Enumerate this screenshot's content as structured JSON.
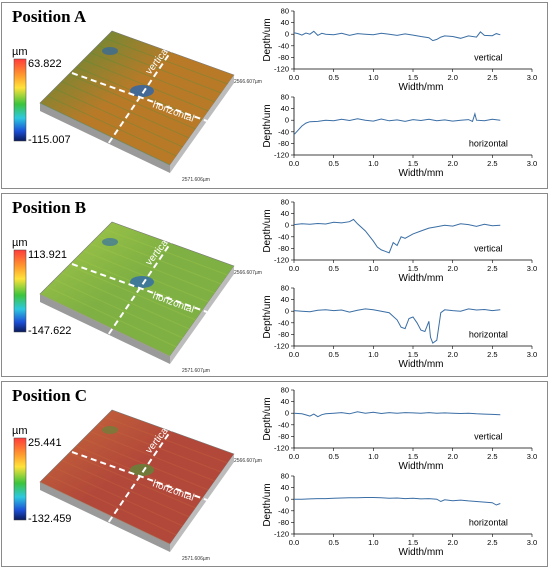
{
  "panels": [
    {
      "title": "Position A",
      "unit": "µm",
      "scale_max": "63.822",
      "scale_min": "-115.007",
      "axis_label_right": "2566.607µm",
      "axis_label_front": "2571.606µm",
      "line_labels": [
        "vertical",
        "horizontal"
      ],
      "surface_colors": {
        "base": "#b97a28",
        "accent": "#4f8f3a",
        "dark": "#1f63b8"
      }
    },
    {
      "title": "Position B",
      "unit": "µm",
      "scale_max": "113.921",
      "scale_min": "-147.622",
      "axis_label_right": "2566.607µm",
      "axis_label_front": "2571.607µm",
      "line_labels": [
        "vertical",
        "horizontal"
      ],
      "surface_colors": {
        "base": "#7fb043",
        "accent": "#a4c94a",
        "dark": "#2a67b3"
      }
    },
    {
      "title": "Position C",
      "unit": "µm",
      "scale_max": "25.441",
      "scale_min": "-132.459",
      "axis_label_right": "2566.607µm",
      "axis_label_front": "2571.606µm",
      "line_labels": [
        "vertical",
        "horizontal"
      ],
      "surface_colors": {
        "base": "#b2483a",
        "accent": "#c86a3a",
        "dark": "#5a8a3a"
      }
    }
  ],
  "chart_data": [
    {
      "panel": "Position A",
      "type": "line",
      "xlabel": "Width/mm",
      "ylabel": "Depth/um",
      "legend": "vertical",
      "xlim": [
        0.0,
        3.0
      ],
      "ylim": [
        -120,
        80
      ],
      "xticks": [
        "0.0",
        "0.5",
        "1.0",
        "1.5",
        "2.0",
        "2.5",
        "3.0"
      ],
      "yticks": [
        "80",
        "40",
        "0",
        "-40",
        "-80",
        "-120"
      ],
      "x": [
        0.0,
        0.05,
        0.1,
        0.15,
        0.2,
        0.25,
        0.3,
        0.35,
        0.4,
        0.5,
        0.6,
        0.7,
        0.8,
        0.9,
        1.0,
        1.1,
        1.2,
        1.3,
        1.4,
        1.5,
        1.6,
        1.7,
        1.75,
        1.8,
        1.85,
        1.9,
        2.0,
        2.1,
        2.2,
        2.3,
        2.35,
        2.4,
        2.5,
        2.55,
        2.6
      ],
      "y": [
        5,
        2,
        -3,
        4,
        0,
        10,
        -4,
        3,
        0,
        -2,
        3,
        -4,
        2,
        0,
        -2,
        3,
        0,
        -4,
        1,
        -3,
        -8,
        -12,
        -22,
        -18,
        -10,
        -6,
        -8,
        -14,
        -6,
        -10,
        8,
        -4,
        -5,
        2,
        -2
      ]
    },
    {
      "panel": "Position A",
      "type": "line",
      "xlabel": "Width/mm",
      "ylabel": "Depth/um",
      "legend": "horizontal",
      "xlim": [
        0.0,
        3.0
      ],
      "ylim": [
        -120,
        80
      ],
      "xticks": [
        "0.0",
        "0.5",
        "1.0",
        "1.5",
        "2.0",
        "2.5",
        "3.0"
      ],
      "yticks": [
        "80",
        "40",
        "0",
        "-40",
        "-80",
        "-120"
      ],
      "x": [
        0.0,
        0.05,
        0.1,
        0.15,
        0.2,
        0.3,
        0.4,
        0.5,
        0.6,
        0.7,
        0.8,
        0.9,
        1.0,
        1.1,
        1.2,
        1.3,
        1.4,
        1.5,
        1.6,
        1.7,
        1.8,
        1.9,
        2.0,
        2.1,
        2.2,
        2.25,
        2.28,
        2.3,
        2.4,
        2.5,
        2.6
      ],
      "y": [
        -50,
        -35,
        -20,
        -10,
        -5,
        -4,
        0,
        -2,
        3,
        -1,
        5,
        0,
        -3,
        4,
        -2,
        1,
        -4,
        2,
        -1,
        3,
        -2,
        1,
        -3,
        0,
        2,
        -4,
        22,
        0,
        -2,
        3,
        0
      ]
    },
    {
      "panel": "Position B",
      "type": "line",
      "xlabel": "Width/mm",
      "ylabel": "Depth/um",
      "legend": "vertical",
      "xlim": [
        0.0,
        3.0
      ],
      "ylim": [
        -120,
        80
      ],
      "xticks": [
        "0.0",
        "0.5",
        "1.0",
        "1.5",
        "2.0",
        "2.5",
        "3.0"
      ],
      "yticks": [
        "80",
        "40",
        "0",
        "-40",
        "-80",
        "-120"
      ],
      "x": [
        0.0,
        0.1,
        0.2,
        0.3,
        0.4,
        0.5,
        0.6,
        0.7,
        0.75,
        0.8,
        0.9,
        1.0,
        1.05,
        1.1,
        1.15,
        1.2,
        1.25,
        1.3,
        1.35,
        1.4,
        1.5,
        1.6,
        1.7,
        1.8,
        1.9,
        2.0,
        2.1,
        2.2,
        2.3,
        2.4,
        2.5,
        2.6
      ],
      "y": [
        2,
        5,
        3,
        6,
        4,
        10,
        8,
        12,
        20,
        5,
        -20,
        -55,
        -75,
        -85,
        -90,
        -95,
        -60,
        -70,
        -40,
        -45,
        -30,
        -20,
        -10,
        -5,
        0,
        -3,
        5,
        2,
        -4,
        3,
        -2,
        0
      ]
    },
    {
      "panel": "Position B",
      "type": "line",
      "xlabel": "Width/mm",
      "ylabel": "Depth/um",
      "legend": "horizontal",
      "xlim": [
        0.0,
        3.0
      ],
      "ylim": [
        -120,
        80
      ],
      "xticks": [
        "0.0",
        "0.5",
        "1.0",
        "1.5",
        "2.0",
        "2.5",
        "3.0"
      ],
      "yticks": [
        "80",
        "40",
        "0",
        "-40",
        "-80",
        "-120"
      ],
      "x": [
        0.0,
        0.1,
        0.2,
        0.3,
        0.4,
        0.5,
        0.6,
        0.7,
        0.8,
        0.9,
        1.0,
        1.1,
        1.2,
        1.3,
        1.35,
        1.4,
        1.45,
        1.5,
        1.55,
        1.6,
        1.65,
        1.7,
        1.72,
        1.75,
        1.8,
        1.85,
        1.9,
        2.0,
        2.1,
        2.2,
        2.3,
        2.4,
        2.5,
        2.6
      ],
      "y": [
        2,
        0,
        -2,
        3,
        5,
        2,
        4,
        -3,
        3,
        8,
        5,
        0,
        -5,
        -30,
        -55,
        -60,
        -25,
        -20,
        -40,
        -65,
        -70,
        -35,
        -90,
        -110,
        -100,
        -5,
        5,
        2,
        0,
        8,
        4,
        6,
        2,
        5
      ]
    },
    {
      "panel": "Position C",
      "type": "line",
      "xlabel": "Width/mm",
      "ylabel": "Depth/um",
      "legend": "vertical",
      "xlim": [
        0.0,
        3.0
      ],
      "ylim": [
        -120,
        80
      ],
      "xticks": [
        "0.0",
        "0.5",
        "1.0",
        "1.5",
        "2.0",
        "2.5",
        "3.0"
      ],
      "yticks": [
        "80",
        "40",
        "0",
        "-40",
        "-80",
        "-120"
      ],
      "x": [
        0.0,
        0.1,
        0.15,
        0.2,
        0.25,
        0.3,
        0.35,
        0.4,
        0.5,
        0.6,
        0.7,
        0.8,
        0.9,
        1.0,
        1.1,
        1.2,
        1.3,
        1.4,
        1.5,
        1.6,
        1.7,
        1.8,
        1.9,
        2.0,
        2.1,
        2.2,
        2.3,
        2.4,
        2.5,
        2.6
      ],
      "y": [
        0,
        -2,
        -6,
        -10,
        -3,
        -12,
        -5,
        -2,
        0,
        2,
        -2,
        5,
        0,
        3,
        -1,
        2,
        0,
        2,
        1,
        0,
        2,
        0,
        1,
        0,
        -1,
        0,
        -2,
        -3,
        -4,
        -5
      ]
    },
    {
      "panel": "Position C",
      "type": "line",
      "xlabel": "Width/mm",
      "ylabel": "Depth/um",
      "legend": "horizontal",
      "xlim": [
        0.0,
        3.0
      ],
      "ylim": [
        -120,
        80
      ],
      "xticks": [
        "0.0",
        "0.5",
        "1.0",
        "1.5",
        "2.0",
        "2.5",
        "3.0"
      ],
      "yticks": [
        "80",
        "40",
        "0",
        "-40",
        "-80",
        "-120"
      ],
      "x": [
        0.0,
        0.1,
        0.2,
        0.3,
        0.4,
        0.5,
        0.6,
        0.7,
        0.8,
        0.9,
        1.0,
        1.1,
        1.2,
        1.3,
        1.4,
        1.5,
        1.6,
        1.7,
        1.8,
        1.85,
        1.9,
        2.0,
        2.1,
        2.2,
        2.3,
        2.4,
        2.5,
        2.55,
        2.6
      ],
      "y": [
        0,
        0,
        1,
        2,
        2,
        3,
        4,
        5,
        5,
        6,
        6,
        5,
        3,
        4,
        2,
        3,
        1,
        2,
        0,
        -8,
        -2,
        -5,
        -3,
        -6,
        -8,
        -10,
        -12,
        -20,
        -15
      ]
    }
  ]
}
